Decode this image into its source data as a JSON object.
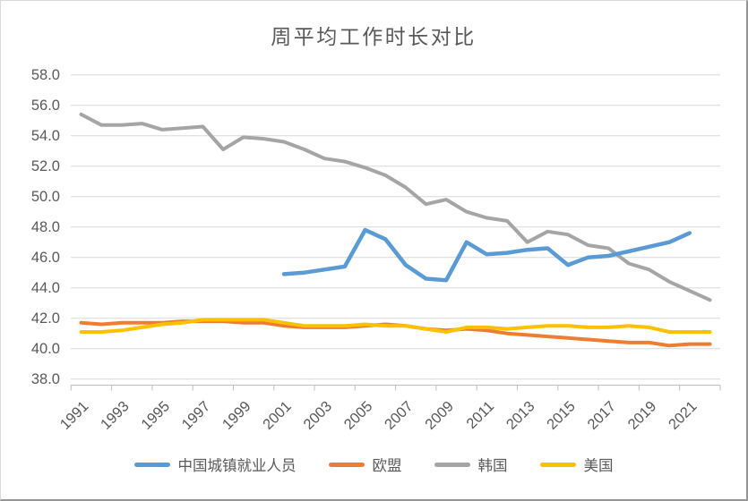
{
  "title": "周平均工作时长对比",
  "colors": {
    "china_blue": "#5B9BD5",
    "eu_orange": "#ED7D31",
    "korea_gray": "#A5A5A5",
    "us_gold": "#FFC000",
    "gridline": "#D9D9D9",
    "axis_line": "#BFBFBF",
    "text": "#595959"
  },
  "legend": [
    {
      "label": "中国城镇就业人员"
    },
    {
      "label": "欧盟"
    },
    {
      "label": "韩国"
    },
    {
      "label": "美国"
    }
  ],
  "chart_data": {
    "type": "line",
    "title": "周平均工作时长对比",
    "xlabel": "",
    "ylabel": "",
    "ylim": [
      38.0,
      58.0
    ],
    "y_tick_step": 2.0,
    "grid": true,
    "legend_position": "bottom",
    "x": [
      1991,
      1992,
      1993,
      1994,
      1995,
      1996,
      1997,
      1998,
      1999,
      2000,
      2001,
      2002,
      2003,
      2004,
      2005,
      2006,
      2007,
      2008,
      2009,
      2010,
      2011,
      2012,
      2013,
      2014,
      2015,
      2016,
      2017,
      2018,
      2019,
      2020,
      2021,
      2022
    ],
    "x_tick_labels": [
      "1991",
      "1993",
      "1995",
      "1997",
      "1999",
      "2001",
      "2003",
      "2005",
      "2007",
      "2009",
      "2011",
      "2013",
      "2015",
      "2017",
      "2019",
      "2021"
    ],
    "y_tick_labels": [
      "58.0",
      "56.0",
      "54.0",
      "52.0",
      "50.0",
      "48.0",
      "46.0",
      "44.0",
      "42.0",
      "40.0",
      "38.0"
    ],
    "series": [
      {
        "name": "欧盟",
        "color": "#ED7D31",
        "width": 4,
        "values": [
          41.7,
          41.6,
          41.7,
          41.7,
          41.7,
          41.8,
          41.8,
          41.8,
          41.7,
          41.7,
          41.5,
          41.4,
          41.4,
          41.4,
          41.5,
          41.6,
          41.5,
          41.3,
          41.2,
          41.3,
          41.2,
          41.0,
          40.9,
          40.8,
          40.7,
          40.6,
          40.5,
          40.4,
          40.4,
          40.2,
          40.3,
          40.3
        ]
      },
      {
        "name": "美国",
        "color": "#FFC000",
        "width": 4,
        "values": [
          41.1,
          41.1,
          41.2,
          41.4,
          41.6,
          41.7,
          41.9,
          41.9,
          41.9,
          41.9,
          41.7,
          41.5,
          41.5,
          41.5,
          41.6,
          41.5,
          41.5,
          41.3,
          41.1,
          41.4,
          41.4,
          41.3,
          41.4,
          41.5,
          41.5,
          41.4,
          41.4,
          41.5,
          41.4,
          41.1,
          41.1,
          41.1
        ]
      },
      {
        "name": "韩国",
        "color": "#A5A5A5",
        "width": 4,
        "values": [
          55.4,
          54.7,
          54.7,
          54.8,
          54.4,
          54.5,
          54.6,
          53.1,
          53.9,
          53.8,
          53.6,
          53.1,
          52.5,
          52.3,
          51.9,
          51.4,
          50.6,
          49.5,
          49.8,
          49.0,
          48.6,
          48.4,
          47.0,
          47.7,
          47.5,
          46.8,
          46.6,
          45.6,
          45.2,
          44.4,
          43.8,
          43.2
        ]
      },
      {
        "name": "中国城镇就业人员",
        "color": "#5B9BD5",
        "width": 4.5,
        "values": [
          null,
          null,
          null,
          null,
          null,
          null,
          null,
          null,
          null,
          null,
          44.9,
          45.0,
          45.2,
          45.4,
          47.8,
          47.2,
          45.5,
          44.6,
          44.5,
          47.0,
          46.2,
          46.3,
          46.5,
          46.6,
          45.5,
          46.0,
          46.1,
          46.4,
          46.7,
          47.0,
          47.6,
          null
        ]
      }
    ]
  }
}
